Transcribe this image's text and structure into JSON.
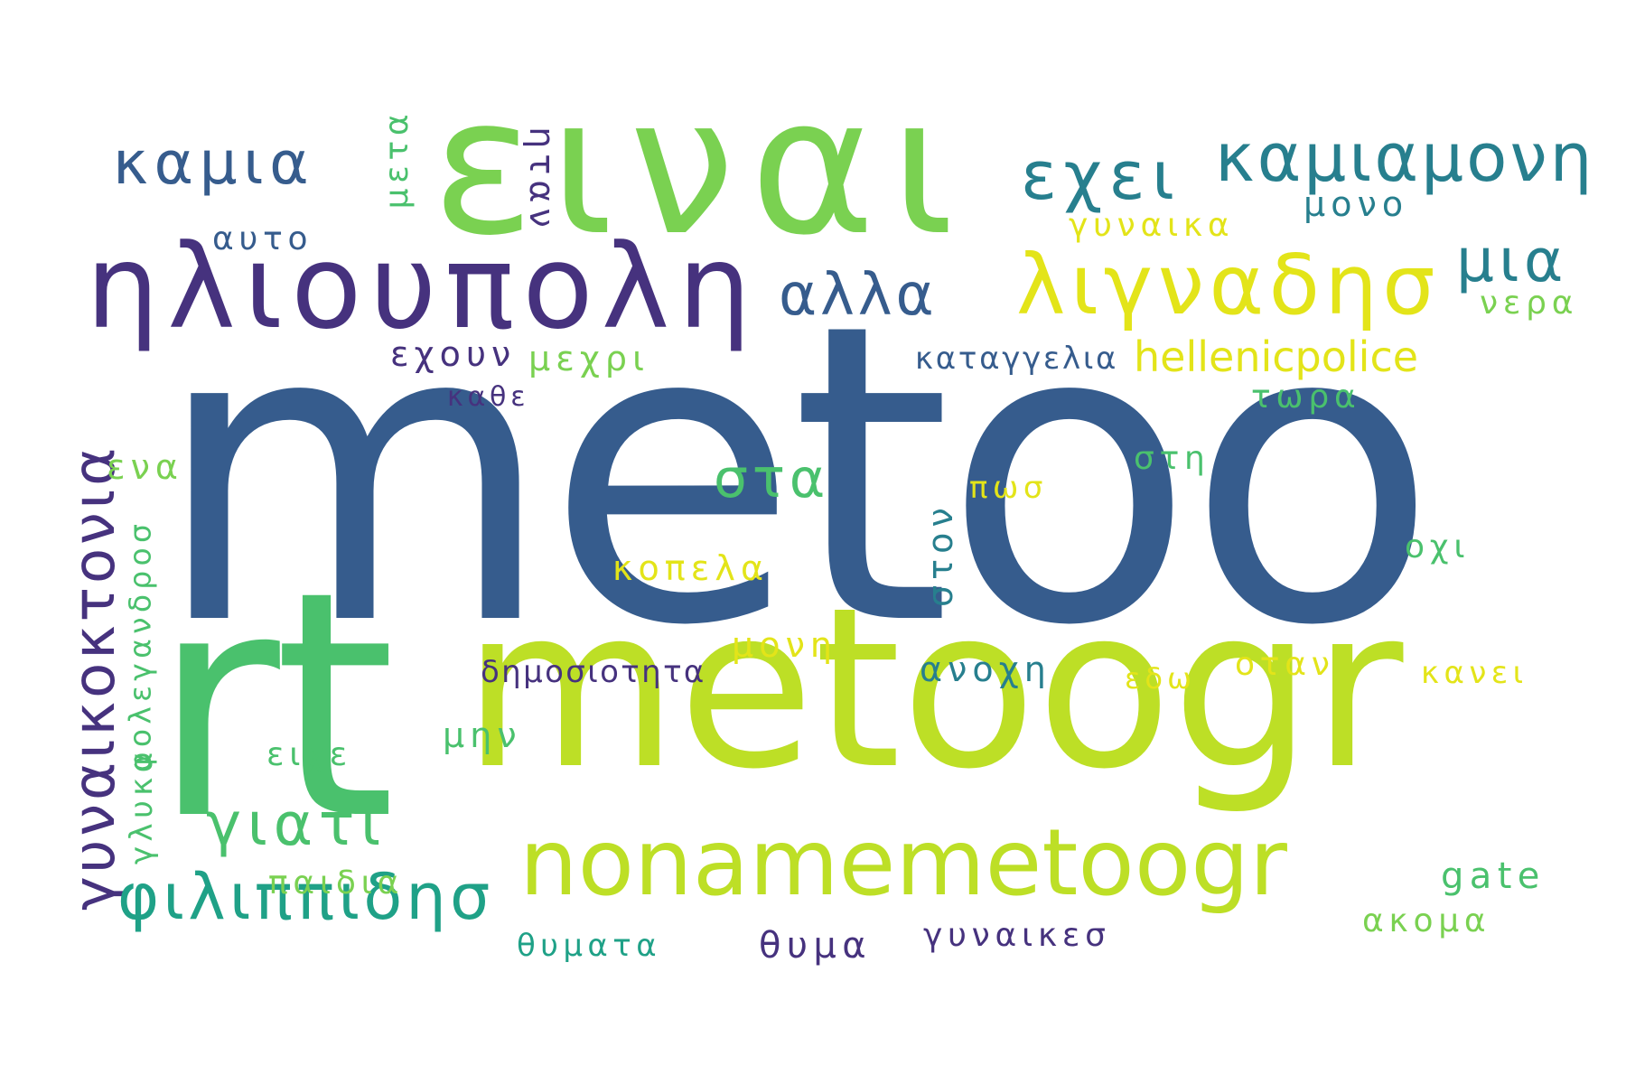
{
  "colors": {
    "background": "#ffffff",
    "dark_purple": "#46327e",
    "blue": "#365c8d",
    "teal_blue": "#277f8e",
    "teal": "#1fa187",
    "green": "#4ac16d",
    "lime": "#7ad151",
    "yellow_green": "#bddf26",
    "yellow": "#e3e419"
  },
  "words": [
    "metoo",
    "rt",
    "metoogr",
    "ειναι",
    "ηλιουπολη",
    "nonamemetoogr",
    "γυναικοκτονια",
    "λιγναδησ",
    "φιλιππιδησ",
    "καμιαμονη",
    "εχει",
    "καμια",
    "γιατι",
    "αλλα",
    "μια",
    "στα",
    "hellenicpolice",
    "μετα",
    "ηταν",
    "αυτο",
    "γυναικα",
    "μονο",
    "νερα",
    "εχουν",
    "μεχρι",
    "καταγγελια",
    "καθε",
    "τωρα",
    "ενα",
    "στη",
    "πωσ",
    "φολεγανδροσ",
    "στον",
    "οχι",
    "κοπελα",
    "μονη",
    "δημοσιοτητα",
    "ανοχη",
    "εδω",
    "οταν",
    "κανει",
    "μην",
    "ειχε",
    "γλυκα",
    "gate",
    "παιδια",
    "ακομα",
    "θυματα",
    "θυμα",
    "γυναικεσ"
  ]
}
